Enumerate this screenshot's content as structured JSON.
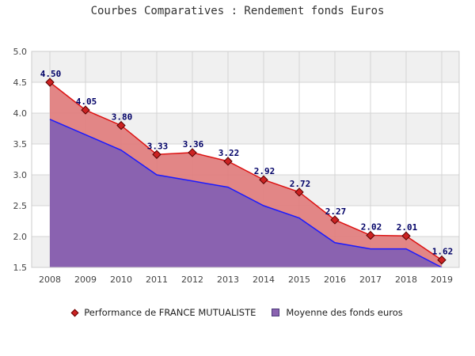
{
  "chart_data": {
    "type": "area",
    "title": "Courbes Comparatives : Rendement fonds Euros",
    "xlabel": "",
    "ylabel": "",
    "categories": [
      "2008",
      "2009",
      "2010",
      "2011",
      "2012",
      "2013",
      "2014",
      "2015",
      "2016",
      "2017",
      "2018",
      "2019"
    ],
    "ylim": [
      1.5,
      5.0
    ],
    "yticks": [
      "1.5",
      "2.0",
      "2.5",
      "3.0",
      "3.5",
      "4.0",
      "4.5",
      "5.0"
    ],
    "grid": true,
    "legend_position": "bottom",
    "series": [
      {
        "name": "Performance de FRANCE MUTUALISTE",
        "values": [
          4.5,
          4.05,
          3.8,
          3.33,
          3.36,
          3.22,
          2.92,
          2.72,
          2.27,
          2.02,
          2.01,
          1.62
        ],
        "labels": [
          "4.50",
          "4.05",
          "3.80",
          "3.33",
          "3.36",
          "3.22",
          "2.92",
          "2.72",
          "2.27",
          "2.02",
          "2.01",
          "1.62"
        ],
        "line_color": "#dd1111",
        "fill_color": "#e08080",
        "marker": "diamond"
      },
      {
        "name": "Moyenne des fonds euros",
        "values": [
          3.9,
          3.65,
          3.4,
          3.0,
          2.9,
          2.8,
          2.5,
          2.3,
          1.9,
          1.8,
          1.8,
          1.5
        ],
        "line_color": "#1a1aff",
        "fill_color": "#8a62b0"
      }
    ]
  }
}
